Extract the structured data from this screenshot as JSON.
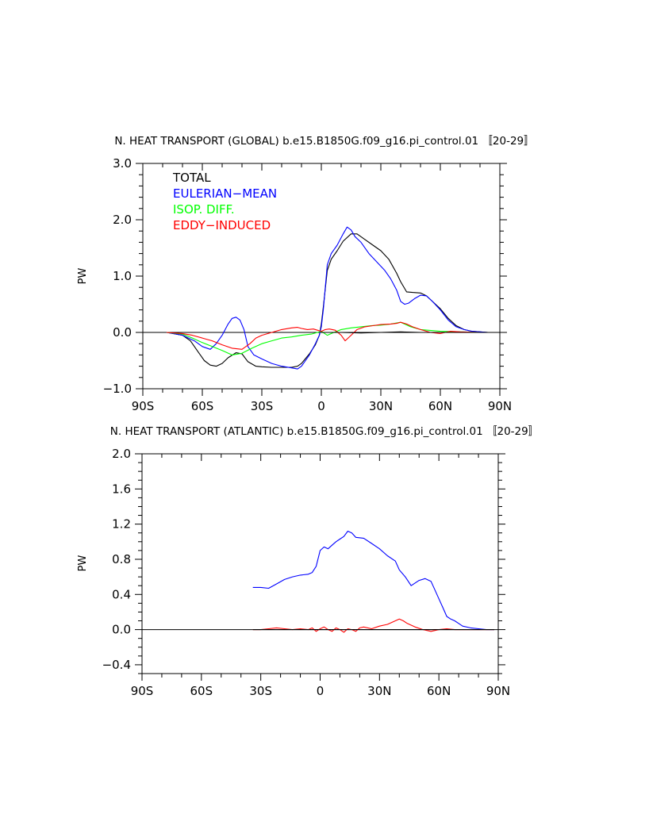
{
  "chart_data": [
    {
      "type": "line",
      "title": "N. HEAT TRANSPORT (GLOBAL) b.e15.B1850G.f09_g16.pi_control.01 〚20-29〛",
      "xlabel": "",
      "ylabel": "PW",
      "xlim": [
        -90,
        90
      ],
      "ylim": [
        -1.0,
        3.0
      ],
      "xticks": [
        {
          "v": -90,
          "label": "90S"
        },
        {
          "v": -60,
          "label": "60S"
        },
        {
          "v": -30,
          "label": "30S"
        },
        {
          "v": 0,
          "label": "0"
        },
        {
          "v": 30,
          "label": "30N"
        },
        {
          "v": 60,
          "label": "60N"
        },
        {
          "v": 90,
          "label": "90N"
        }
      ],
      "yticks": [
        {
          "v": -1.0,
          "label": "−1.0"
        },
        {
          "v": 0.0,
          "label": "0.0"
        },
        {
          "v": 1.0,
          "label": "1.0"
        },
        {
          "v": 2.0,
          "label": "2.0"
        },
        {
          "v": 3.0,
          "label": "3.0"
        }
      ],
      "legend": "top-left",
      "zero_line": true,
      "series": [
        {
          "name": "TOTAL",
          "color": "#000000",
          "x": [
            -78,
            -70,
            -66,
            -62,
            -59,
            -56,
            -53,
            -50,
            -47,
            -43,
            -40,
            -37,
            -33,
            -30,
            -25,
            -20,
            -15,
            -12,
            -10,
            -6,
            -3,
            -1,
            0,
            1,
            3,
            5,
            8,
            11,
            15,
            18,
            22,
            26,
            30,
            34,
            38,
            40,
            43,
            46,
            50,
            53,
            56,
            60,
            64,
            68,
            72,
            76,
            80,
            84,
            88
          ],
          "y": [
            0,
            -0.05,
            -0.15,
            -0.35,
            -0.5,
            -0.58,
            -0.6,
            -0.55,
            -0.45,
            -0.36,
            -0.38,
            -0.52,
            -0.6,
            -0.61,
            -0.62,
            -0.62,
            -0.62,
            -0.6,
            -0.55,
            -0.38,
            -0.22,
            -0.05,
            0.15,
            0.45,
            1.1,
            1.3,
            1.45,
            1.62,
            1.75,
            1.75,
            1.65,
            1.55,
            1.45,
            1.3,
            1.05,
            0.9,
            0.72,
            0.71,
            0.7,
            0.65,
            0.55,
            0.42,
            0.25,
            0.12,
            0.05,
            0.02,
            0.01,
            0,
            0
          ]
        },
        {
          "name": "EULERIAN−MEAN",
          "color": "#0000ff",
          "x": [
            -78,
            -70,
            -64,
            -60,
            -56,
            -53,
            -50,
            -47,
            -45,
            -43,
            -41,
            -39,
            -37,
            -34,
            -30,
            -25,
            -20,
            -15,
            -12,
            -10,
            -6,
            -3,
            -1,
            0,
            1,
            3,
            5,
            8,
            11,
            13,
            15,
            17,
            20,
            24,
            28,
            32,
            35,
            38,
            40,
            42,
            44,
            47,
            50,
            53,
            56,
            60,
            64,
            68,
            72,
            76,
            80,
            84,
            88
          ],
          "y": [
            0,
            -0.05,
            -0.15,
            -0.25,
            -0.3,
            -0.2,
            -0.05,
            0.15,
            0.25,
            0.27,
            0.22,
            0.05,
            -0.25,
            -0.4,
            -0.47,
            -0.55,
            -0.6,
            -0.63,
            -0.65,
            -0.6,
            -0.4,
            -0.2,
            -0.05,
            0.1,
            0.4,
            1.2,
            1.4,
            1.55,
            1.75,
            1.87,
            1.82,
            1.7,
            1.6,
            1.4,
            1.25,
            1.1,
            0.95,
            0.75,
            0.55,
            0.5,
            0.52,
            0.6,
            0.66,
            0.65,
            0.55,
            0.4,
            0.22,
            0.1,
            0.05,
            0.02,
            0.01,
            0,
            0
          ]
        },
        {
          "name": "ISOP. DIFF.",
          "color": "#00ff00",
          "x": [
            -78,
            -70,
            -65,
            -60,
            -55,
            -50,
            -45,
            -40,
            -35,
            -30,
            -25,
            -20,
            -15,
            -10,
            -5,
            -2,
            0,
            3,
            5,
            10,
            15,
            20,
            25,
            30,
            35,
            40,
            45,
            50,
            60,
            70,
            80,
            88
          ],
          "y": [
            0,
            -0.03,
            -0.1,
            -0.18,
            -0.25,
            -0.32,
            -0.4,
            -0.37,
            -0.28,
            -0.2,
            -0.15,
            -0.1,
            -0.08,
            -0.05,
            -0.03,
            0.0,
            0.02,
            -0.05,
            -0.02,
            0.05,
            0.08,
            0.1,
            0.12,
            0.13,
            0.15,
            0.18,
            0.1,
            0.05,
            0.02,
            0.01,
            0,
            0
          ]
        },
        {
          "name": "EDDY−INDUCED",
          "color": "#ff0000",
          "x": [
            -78,
            -70,
            -65,
            -60,
            -55,
            -50,
            -45,
            -40,
            -36,
            -33,
            -30,
            -25,
            -20,
            -15,
            -12,
            -10,
            -7,
            -4,
            -2,
            0,
            2,
            4,
            7,
            10,
            12,
            15,
            18,
            22,
            26,
            30,
            35,
            38,
            40,
            43,
            46,
            50,
            55,
            60,
            65,
            70,
            80,
            88
          ],
          "y": [
            0,
            -0.02,
            -0.05,
            -0.1,
            -0.15,
            -0.22,
            -0.28,
            -0.3,
            -0.2,
            -0.1,
            -0.05,
            0.0,
            0.05,
            0.08,
            0.09,
            0.07,
            0.05,
            0.06,
            0.04,
            0.02,
            0.05,
            0.06,
            0.04,
            -0.05,
            -0.15,
            -0.05,
            0.05,
            0.1,
            0.12,
            0.14,
            0.15,
            0.16,
            0.18,
            0.15,
            0.1,
            0.05,
            0.0,
            -0.02,
            0.02,
            0.01,
            0,
            0
          ]
        },
        {
          "name": "",
          "color": "#000000",
          "x": [
            0,
            10,
            20,
            30,
            40,
            50,
            60,
            70,
            80,
            88
          ],
          "y": [
            0.0,
            0.0,
            -0.01,
            0.0,
            0.01,
            0.0,
            0.0,
            0.0,
            0.0,
            0.0
          ]
        }
      ]
    },
    {
      "type": "line",
      "title": "N. HEAT TRANSPORT (ATLANTIC) b.e15.B1850G.f09_g16.pi_control.01 〚20-29〛",
      "xlabel": "",
      "ylabel": "PW",
      "xlim": [
        -90,
        90
      ],
      "ylim": [
        -0.5,
        2.0
      ],
      "xticks": [
        {
          "v": -90,
          "label": "90S"
        },
        {
          "v": -60,
          "label": "60S"
        },
        {
          "v": -30,
          "label": "30S"
        },
        {
          "v": 0,
          "label": "0"
        },
        {
          "v": 30,
          "label": "30N"
        },
        {
          "v": 60,
          "label": "60N"
        },
        {
          "v": 90,
          "label": "90N"
        }
      ],
      "yticks": [
        {
          "v": -0.4,
          "label": "−0.4"
        },
        {
          "v": 0.0,
          "label": "0.0"
        },
        {
          "v": 0.4,
          "label": "0.4"
        },
        {
          "v": 0.8,
          "label": "0.8"
        },
        {
          "v": 1.2,
          "label": "1.2"
        },
        {
          "v": 1.6,
          "label": "1.6"
        },
        {
          "v": 2.0,
          "label": "2.0"
        }
      ],
      "legend": "none",
      "zero_line": true,
      "series": [
        {
          "name": "",
          "color": "#0000ff",
          "x": [
            -34,
            -30,
            -26,
            -22,
            -18,
            -14,
            -10,
            -6,
            -4,
            -2,
            0,
            2,
            4,
            6,
            8,
            10,
            12,
            14,
            16,
            18,
            22,
            26,
            30,
            34,
            38,
            40,
            43,
            46,
            50,
            53,
            56,
            58,
            60,
            62,
            64,
            66,
            68,
            70,
            72,
            76,
            80,
            84,
            88
          ],
          "y": [
            0.48,
            0.48,
            0.47,
            0.52,
            0.57,
            0.6,
            0.62,
            0.63,
            0.65,
            0.72,
            0.9,
            0.94,
            0.92,
            0.96,
            1.0,
            1.03,
            1.06,
            1.12,
            1.1,
            1.05,
            1.04,
            0.98,
            0.92,
            0.84,
            0.78,
            0.68,
            0.6,
            0.5,
            0.56,
            0.58,
            0.55,
            0.45,
            0.35,
            0.25,
            0.15,
            0.12,
            0.1,
            0.07,
            0.04,
            0.02,
            0.01,
            0,
            0
          ]
        },
        {
          "name": "",
          "color": "#ff0000",
          "x": [
            -34,
            -30,
            -26,
            -22,
            -18,
            -14,
            -10,
            -6,
            -4,
            -2,
            0,
            2,
            4,
            6,
            8,
            10,
            12,
            14,
            16,
            18,
            20,
            22,
            26,
            30,
            34,
            36,
            38,
            40,
            42,
            44,
            48,
            52,
            56,
            60,
            64,
            68,
            72,
            76,
            80,
            84,
            88
          ],
          "y": [
            0.0,
            0.0,
            0.01,
            0.02,
            0.01,
            0.0,
            0.01,
            0.0,
            0.02,
            -0.02,
            0.01,
            0.03,
            0.0,
            -0.02,
            0.02,
            0.0,
            -0.03,
            0.01,
            0.0,
            -0.02,
            0.02,
            0.03,
            0.01,
            0.04,
            0.06,
            0.08,
            0.1,
            0.12,
            0.1,
            0.07,
            0.03,
            0.0,
            -0.02,
            0.0,
            0.01,
            0.0,
            0.0,
            0,
            0,
            0,
            0
          ]
        },
        {
          "name": "",
          "color": "#000000",
          "x": [
            -34,
            -20,
            0,
            20,
            40,
            60,
            88
          ],
          "y": [
            0,
            0,
            0,
            0,
            0,
            0,
            0
          ]
        }
      ]
    }
  ]
}
